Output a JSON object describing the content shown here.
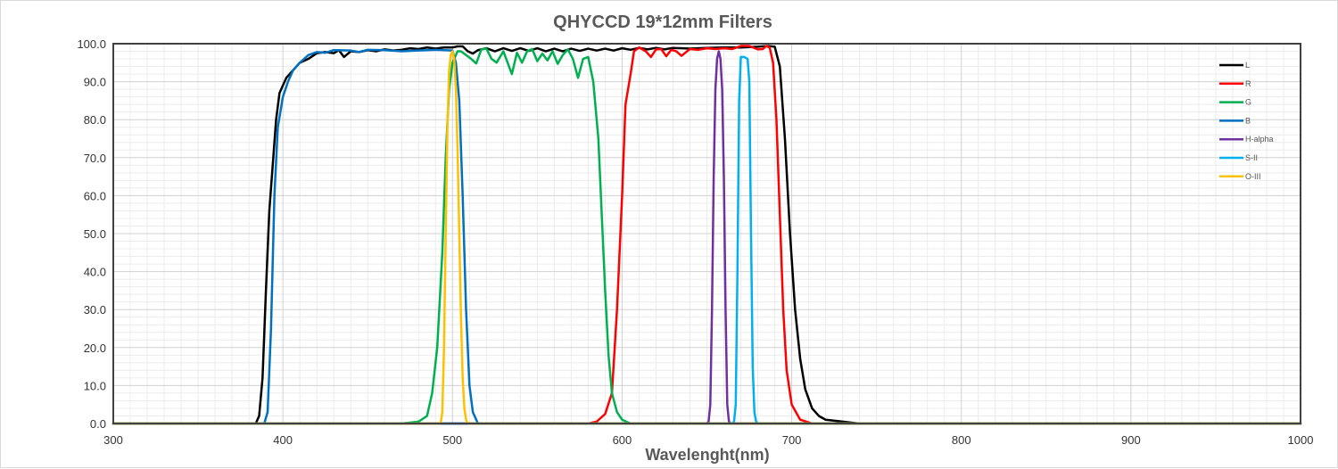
{
  "chart_data": {
    "type": "line",
    "title": "QHYCCD 19*12mm Filters",
    "xlabel": "Wavelenght(nm)",
    "ylabel": "",
    "xlim": [
      300,
      1000
    ],
    "ylim": [
      0,
      100
    ],
    "x_ticks": [
      300,
      400,
      500,
      600,
      700,
      800,
      900,
      1000
    ],
    "y_ticks": [
      "0.0",
      "10.0",
      "20.0",
      "30.0",
      "40.0",
      "50.0",
      "60.0",
      "70.0",
      "80.0",
      "90.0",
      "100.0"
    ],
    "grid": true,
    "legend_position": "top-right",
    "series": [
      {
        "name": "L",
        "color": "#000000",
        "points": [
          [
            300,
            0
          ],
          [
            384,
            0
          ],
          [
            386,
            2
          ],
          [
            388,
            12
          ],
          [
            390,
            35
          ],
          [
            392,
            56
          ],
          [
            394,
            68
          ],
          [
            396,
            80
          ],
          [
            398,
            87
          ],
          [
            402,
            91
          ],
          [
            406,
            93
          ],
          [
            410,
            95
          ],
          [
            415,
            96
          ],
          [
            420,
            97.5
          ],
          [
            425,
            97.8
          ],
          [
            430,
            97.5
          ],
          [
            433,
            98.3
          ],
          [
            436,
            96.5
          ],
          [
            440,
            98
          ],
          [
            445,
            97.8
          ],
          [
            450,
            98.3
          ],
          [
            455,
            98
          ],
          [
            460,
            98.5
          ],
          [
            465,
            98.2
          ],
          [
            470,
            98.4
          ],
          [
            475,
            98.8
          ],
          [
            480,
            98.6
          ],
          [
            485,
            99
          ],
          [
            490,
            98.7
          ],
          [
            495,
            99
          ],
          [
            500,
            99
          ],
          [
            503,
            99.3
          ],
          [
            506,
            99.3
          ],
          [
            509,
            98
          ],
          [
            512,
            97.4
          ],
          [
            515,
            98.3
          ],
          [
            520,
            98.8
          ],
          [
            525,
            98
          ],
          [
            530,
            98.8
          ],
          [
            535,
            98.1
          ],
          [
            540,
            98.8
          ],
          [
            545,
            98.1
          ],
          [
            550,
            98.8
          ],
          [
            555,
            98
          ],
          [
            560,
            98.7
          ],
          [
            565,
            98
          ],
          [
            570,
            98.7
          ],
          [
            575,
            98.1
          ],
          [
            580,
            98.7
          ],
          [
            585,
            98.2
          ],
          [
            590,
            98.7
          ],
          [
            595,
            98.2
          ],
          [
            600,
            98.8
          ],
          [
            605,
            98.4
          ],
          [
            610,
            98.9
          ],
          [
            615,
            98.5
          ],
          [
            620,
            98.9
          ],
          [
            625,
            98.5
          ],
          [
            630,
            98.9
          ],
          [
            640,
            98.7
          ],
          [
            650,
            98.9
          ],
          [
            660,
            99
          ],
          [
            670,
            99
          ],
          [
            680,
            99.2
          ],
          [
            686,
            99.4
          ],
          [
            690,
            99.2
          ],
          [
            693,
            94
          ],
          [
            696,
            75
          ],
          [
            699,
            50
          ],
          [
            702,
            30
          ],
          [
            705,
            17
          ],
          [
            708,
            9
          ],
          [
            712,
            4
          ],
          [
            716,
            2
          ],
          [
            720,
            1
          ],
          [
            730,
            0.5
          ],
          [
            740,
            0
          ],
          [
            1000,
            0
          ]
        ]
      },
      {
        "name": "R",
        "color": "#ff0000",
        "points": [
          [
            300,
            0
          ],
          [
            580,
            0
          ],
          [
            585,
            0.5
          ],
          [
            590,
            2.5
          ],
          [
            594,
            8
          ],
          [
            597,
            30
          ],
          [
            600,
            60
          ],
          [
            602,
            84
          ],
          [
            605,
            92
          ],
          [
            607,
            98
          ],
          [
            610,
            99
          ],
          [
            614,
            98
          ],
          [
            617,
            96.5
          ],
          [
            620,
            98.5
          ],
          [
            623,
            98.6
          ],
          [
            626,
            96.7
          ],
          [
            629,
            98.4
          ],
          [
            632,
            98
          ],
          [
            635,
            96.8
          ],
          [
            640,
            98.6
          ],
          [
            645,
            98.4
          ],
          [
            650,
            98.8
          ],
          [
            655,
            98.6
          ],
          [
            660,
            98.8
          ],
          [
            665,
            98.6
          ],
          [
            670,
            99.4
          ],
          [
            675,
            99.4
          ],
          [
            680,
            98.5
          ],
          [
            683,
            98.6
          ],
          [
            685,
            99.4
          ],
          [
            687,
            99
          ],
          [
            689,
            95
          ],
          [
            691,
            80
          ],
          [
            693,
            55
          ],
          [
            695,
            30
          ],
          [
            697,
            14
          ],
          [
            700,
            5
          ],
          [
            705,
            1
          ],
          [
            712,
            0
          ],
          [
            1000,
            0
          ]
        ]
      },
      {
        "name": "G",
        "color": "#00b050",
        "points": [
          [
            300,
            0
          ],
          [
            470,
            0
          ],
          [
            480,
            0.5
          ],
          [
            485,
            2
          ],
          [
            488,
            8
          ],
          [
            491,
            20
          ],
          [
            494,
            45
          ],
          [
            496,
            70
          ],
          [
            498,
            88
          ],
          [
            500,
            95
          ],
          [
            503,
            98
          ],
          [
            505,
            98
          ],
          [
            508,
            97
          ],
          [
            511,
            96
          ],
          [
            514,
            94.8
          ],
          [
            517,
            98.5
          ],
          [
            520,
            98.7
          ],
          [
            523,
            96
          ],
          [
            526,
            95
          ],
          [
            530,
            98
          ],
          [
            535,
            92
          ],
          [
            538,
            97.6
          ],
          [
            541,
            95
          ],
          [
            544,
            98
          ],
          [
            547,
            98.6
          ],
          [
            550,
            95.4
          ],
          [
            553,
            97.4
          ],
          [
            556,
            95.6
          ],
          [
            559,
            98
          ],
          [
            562,
            94.7
          ],
          [
            565,
            97
          ],
          [
            568,
            98.5
          ],
          [
            571,
            96
          ],
          [
            574,
            91
          ],
          [
            577,
            96
          ],
          [
            580,
            96.5
          ],
          [
            583,
            90
          ],
          [
            586,
            75
          ],
          [
            588,
            55
          ],
          [
            590,
            35
          ],
          [
            592,
            18
          ],
          [
            594,
            8
          ],
          [
            597,
            3
          ],
          [
            600,
            1
          ],
          [
            605,
            0
          ],
          [
            1000,
            0
          ]
        ]
      },
      {
        "name": "B",
        "color": "#0070c0",
        "points": [
          [
            300,
            0
          ],
          [
            389,
            0
          ],
          [
            391,
            3
          ],
          [
            393,
            25
          ],
          [
            395,
            60
          ],
          [
            397,
            78
          ],
          [
            400,
            86
          ],
          [
            403,
            90
          ],
          [
            406,
            93
          ],
          [
            410,
            95
          ],
          [
            415,
            97
          ],
          [
            420,
            97.8
          ],
          [
            425,
            97.6
          ],
          [
            430,
            98.3
          ],
          [
            440,
            98.2
          ],
          [
            445,
            97.8
          ],
          [
            450,
            98.4
          ],
          [
            460,
            98.3
          ],
          [
            470,
            98
          ],
          [
            480,
            98.2
          ],
          [
            490,
            98.4
          ],
          [
            495,
            98.3
          ],
          [
            500,
            98.2
          ],
          [
            502,
            95
          ],
          [
            504,
            85
          ],
          [
            506,
            60
          ],
          [
            508,
            30
          ],
          [
            510,
            10
          ],
          [
            512,
            3
          ],
          [
            515,
            0
          ],
          [
            1000,
            0
          ]
        ]
      },
      {
        "name": "H-alpha",
        "color": "#7030a0",
        "points": [
          [
            300,
            0
          ],
          [
            650,
            0
          ],
          [
            651,
            0.5
          ],
          [
            652,
            5
          ],
          [
            653,
            30
          ],
          [
            654,
            65
          ],
          [
            655,
            88
          ],
          [
            656,
            96
          ],
          [
            657,
            98
          ],
          [
            658,
            96
          ],
          [
            659,
            88
          ],
          [
            660,
            65
          ],
          [
            661,
            30
          ],
          [
            662,
            5
          ],
          [
            663,
            0.5
          ],
          [
            664,
            0
          ],
          [
            1000,
            0
          ]
        ]
      },
      {
        "name": "S-II",
        "color": "#00b0f0",
        "points": [
          [
            300,
            0
          ],
          [
            665,
            0
          ],
          [
            666,
            0.5
          ],
          [
            667,
            5
          ],
          [
            668,
            40
          ],
          [
            669,
            85
          ],
          [
            670,
            96.5
          ],
          [
            672,
            96.5
          ],
          [
            674,
            96
          ],
          [
            675,
            90
          ],
          [
            676,
            50
          ],
          [
            677,
            15
          ],
          [
            678,
            3
          ],
          [
            679,
            0.5
          ],
          [
            680,
            0
          ],
          [
            1000,
            0
          ]
        ]
      },
      {
        "name": "O-III",
        "color": "#ffc000",
        "points": [
          [
            300,
            0
          ],
          [
            493,
            0
          ],
          [
            494,
            3
          ],
          [
            495,
            20
          ],
          [
            496,
            50
          ],
          [
            497,
            78
          ],
          [
            498,
            93
          ],
          [
            499,
            97
          ],
          [
            500,
            98
          ],
          [
            501,
            96
          ],
          [
            502,
            88
          ],
          [
            503,
            72
          ],
          [
            504,
            50
          ],
          [
            505,
            28
          ],
          [
            506,
            12
          ],
          [
            507,
            4
          ],
          [
            508,
            1
          ],
          [
            509,
            0
          ],
          [
            1000,
            0
          ]
        ]
      }
    ]
  }
}
